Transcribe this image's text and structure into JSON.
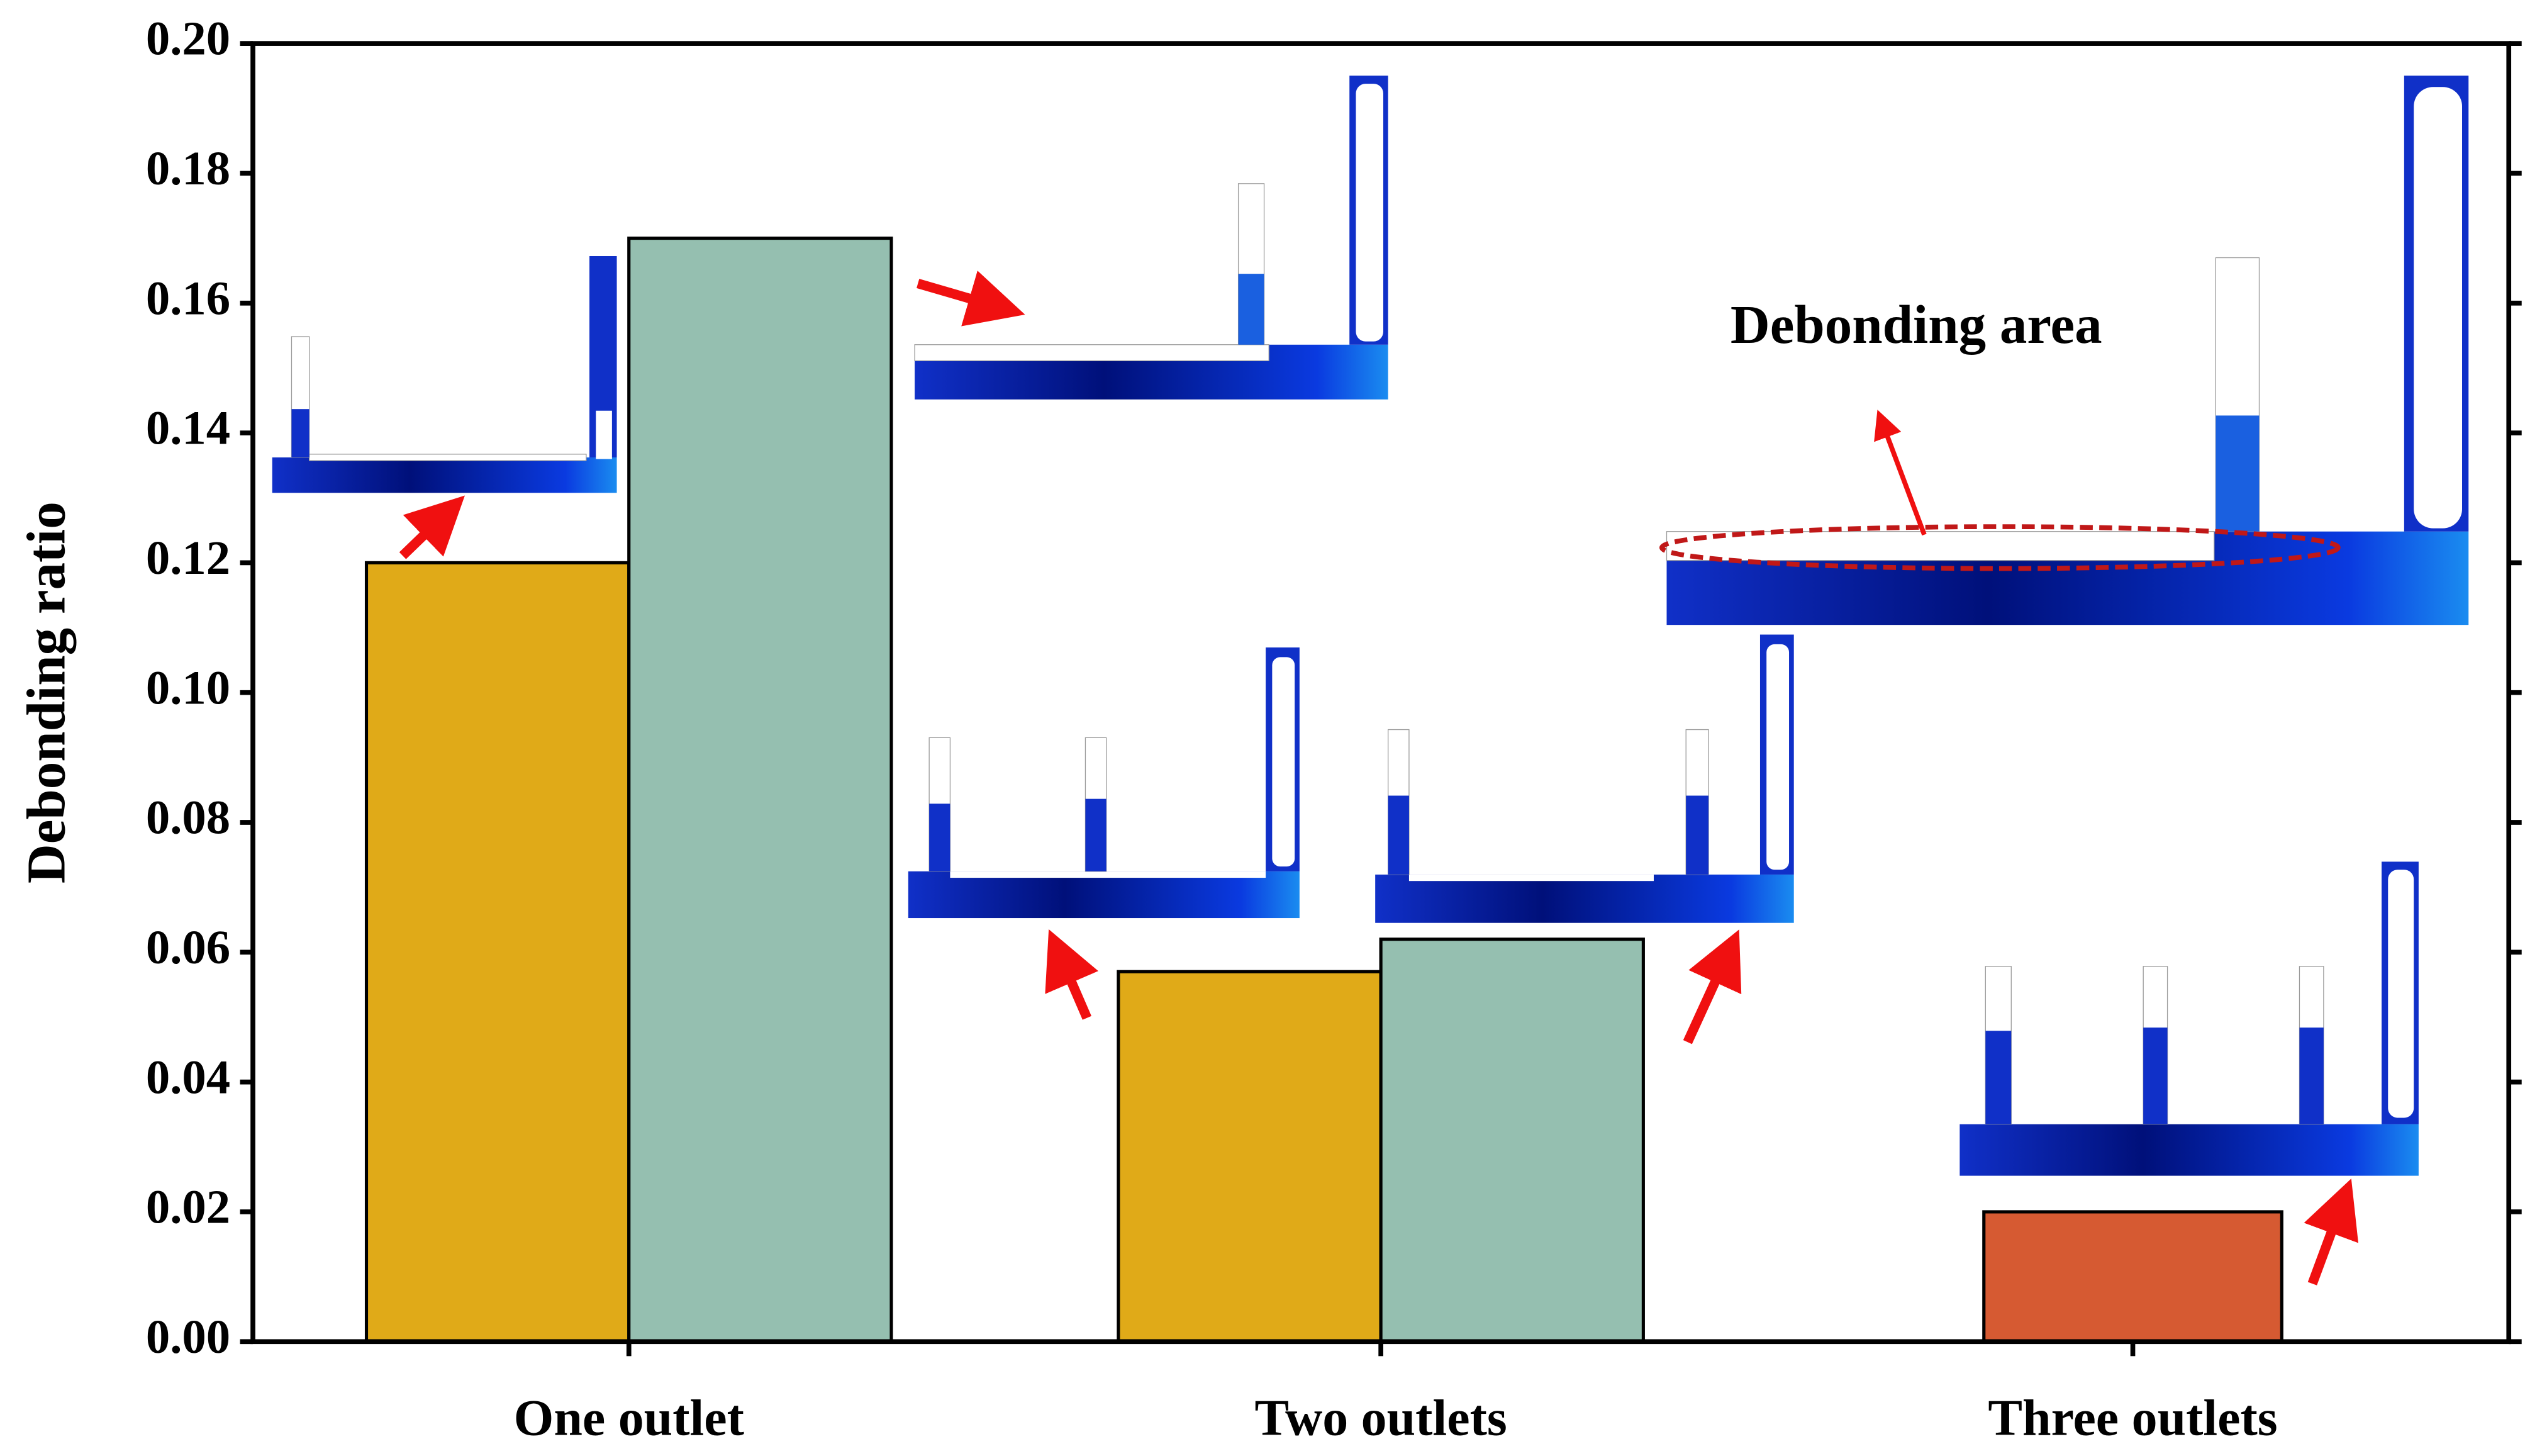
{
  "chart_data": {
    "type": "bar",
    "ylabel": "Debonding ratio",
    "annotation": "Debonding area",
    "categories": [
      "One outlet",
      "Two outlets",
      "Three outlets"
    ],
    "groups": [
      {
        "values": [
          0.12,
          0.17
        ],
        "colors": [
          "#e0aa18",
          "#95bfb0"
        ]
      },
      {
        "values": [
          0.057,
          0.062
        ],
        "colors": [
          "#e0aa18",
          "#95bfb0"
        ]
      },
      {
        "values": [
          0.02
        ],
        "colors": [
          "#d65a32"
        ]
      }
    ],
    "ylim": [
      0,
      0.2
    ],
    "yticks": [
      {
        "value": 0,
        "label": "0.00"
      },
      {
        "value": 0.02,
        "label": "0.02"
      },
      {
        "value": 0.04,
        "label": "0.04"
      },
      {
        "value": 0.06,
        "label": "0.06"
      },
      {
        "value": 0.08,
        "label": "0.08"
      },
      {
        "value": 0.1,
        "label": "0.10"
      },
      {
        "value": 0.12,
        "label": "0.12"
      },
      {
        "value": 0.14,
        "label": "0.14"
      },
      {
        "value": 0.16,
        "label": "0.16"
      },
      {
        "value": 0.18,
        "label": "0.18"
      },
      {
        "value": 0.2,
        "label": "0.20"
      }
    ]
  }
}
